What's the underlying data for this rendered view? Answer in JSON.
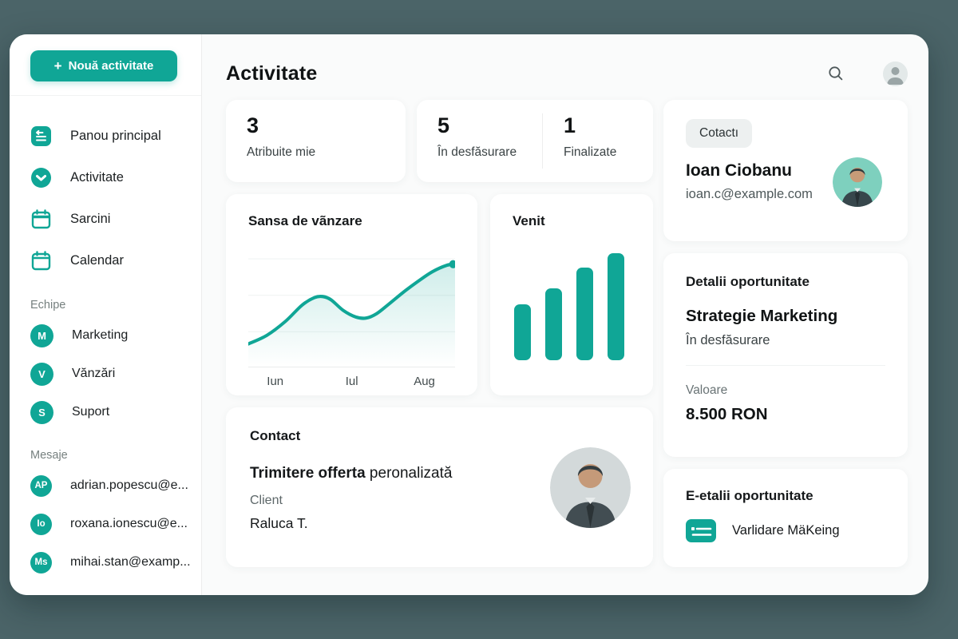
{
  "theme": {
    "accent": "#10a696",
    "backdrop": "#4b6468",
    "card_background": "#ffffff",
    "avatar_teal_background": "#7ed0be"
  },
  "sidebar": {
    "new_activity": {
      "plus": "+",
      "label": "Nouă activitate"
    },
    "nav": [
      {
        "label": "Panou principal",
        "icon": "dashboard-icon"
      },
      {
        "label": "Activitate",
        "icon": "chevron-down-circle-icon"
      },
      {
        "label": "Sarcini",
        "icon": "tasks-calendar-icon"
      },
      {
        "label": "Calendar",
        "icon": "calendar-icon"
      }
    ],
    "teams_label": "Echipe",
    "teams": [
      {
        "initials": "M",
        "label": "Marketing"
      },
      {
        "initials": "V",
        "label": "Vănzări"
      },
      {
        "initials": "S",
        "label": "Suport"
      }
    ],
    "messages_label": "Mesaje",
    "messages": [
      {
        "initials": "AP",
        "label": "adrian.popescu@e..."
      },
      {
        "initials": "Io",
        "label": "roxana.ionescu@e..."
      },
      {
        "initials": "Ms",
        "label": "mihai.stan@examp..."
      }
    ]
  },
  "header": {
    "title": "Activitate",
    "search_icon": "search-icon",
    "user_avatar_icon": "user-avatar-icon"
  },
  "stats": [
    {
      "value": "3",
      "label": "Atribuite mie"
    },
    {
      "value": "5",
      "label": "În desfăsurare"
    },
    {
      "value": "1",
      "label": "Finalizate"
    }
  ],
  "chart_data": [
    {
      "type": "area",
      "title": "Sansa de vãnzare",
      "x_labels": [
        "Iun",
        "Iul",
        "Aug"
      ],
      "points": [
        [
          0,
          14
        ],
        [
          9,
          22
        ],
        [
          18,
          35
        ],
        [
          26,
          50
        ],
        [
          32,
          57
        ],
        [
          36,
          58
        ],
        [
          40,
          55
        ],
        [
          46,
          45
        ],
        [
          52,
          39
        ],
        [
          57,
          38
        ],
        [
          62,
          42
        ],
        [
          68,
          51
        ],
        [
          75,
          62
        ],
        [
          82,
          72
        ],
        [
          89,
          81
        ],
        [
          96,
          87
        ],
        [
          100,
          88
        ]
      ],
      "ylim": [
        0,
        100
      ],
      "grid": true,
      "color": "#10a696",
      "end_dot": true
    },
    {
      "type": "bar",
      "title": "Venit",
      "values": [
        46,
        59,
        76,
        88
      ],
      "ylim": [
        0,
        100
      ],
      "grid": false,
      "color": "#10a696"
    }
  ],
  "contact_task_card": {
    "title": "Contact",
    "task_bold": "Trimitere offerta",
    "task_rest": " peronalizată",
    "client_label": "Client",
    "client_name": "Raluca T."
  },
  "person_card": {
    "badge": "Cotactı",
    "name": "Ioan Ciobanu",
    "email": "ioan.c@example.com"
  },
  "opportunity_card": {
    "title": "Detalii oportunitate",
    "name": "Strategie Marketing",
    "status": "În desfăsurare",
    "value_label": "Valoare",
    "value": "8.500 RON"
  },
  "validation_card": {
    "title": "E-etalii oportunitate",
    "item_label": "Varlidare MäKeing",
    "item_icon": "list-folder-icon"
  }
}
